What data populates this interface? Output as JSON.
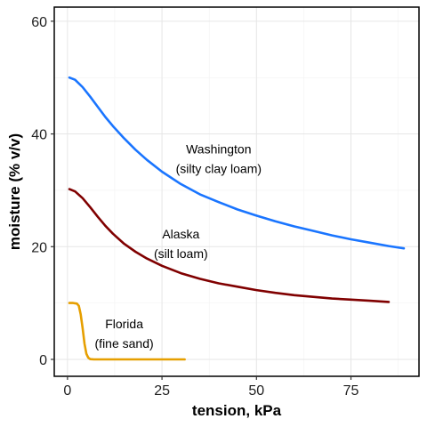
{
  "chart_data": {
    "type": "line",
    "title": "",
    "xlabel": "tension, kPa",
    "ylabel": "moisture (% v/v)",
    "xlim": [
      -3.5,
      93
    ],
    "ylim": [
      -3,
      62.5
    ],
    "xticks": [
      0,
      25,
      50,
      75
    ],
    "yticks": [
      0,
      20,
      40,
      60
    ],
    "grid": true,
    "legend": "none",
    "series": [
      {
        "name": "Washington",
        "color": "#1a75ff",
        "x": [
          0.5,
          2,
          4,
          6,
          8,
          10,
          12,
          15,
          18,
          21,
          25,
          30,
          35,
          40,
          45,
          50,
          55,
          60,
          65,
          70,
          75,
          80,
          85,
          89
        ],
        "values": [
          50,
          49.6,
          48.3,
          46.6,
          44.8,
          43.0,
          41.4,
          39.2,
          37.2,
          35.4,
          33.3,
          31.1,
          29.3,
          27.9,
          26.6,
          25.5,
          24.5,
          23.6,
          22.8,
          22.0,
          21.3,
          20.7,
          20.1,
          19.7
        ]
      },
      {
        "name": "Alaska",
        "color": "#800000",
        "x": [
          0.5,
          2,
          4,
          6,
          8,
          10,
          12,
          15,
          18,
          21,
          25,
          30,
          35,
          40,
          45,
          50,
          55,
          60,
          65,
          70,
          75,
          80,
          85
        ],
        "values": [
          30.2,
          29.8,
          28.6,
          27.0,
          25.3,
          23.7,
          22.3,
          20.5,
          19.1,
          17.9,
          16.6,
          15.3,
          14.3,
          13.5,
          12.9,
          12.3,
          11.8,
          11.4,
          11.1,
          10.8,
          10.6,
          10.4,
          10.2
        ]
      },
      {
        "name": "Florida",
        "color": "#e69f00",
        "x": [
          0.5,
          1.5,
          2.5,
          3.0,
          3.5,
          4.0,
          4.5,
          5.0,
          5.5,
          6.0,
          7,
          10,
          15,
          20,
          25,
          31
        ],
        "values": [
          10,
          10,
          9.9,
          9.5,
          8.0,
          5.5,
          2.8,
          1.0,
          0.3,
          0.05,
          0,
          0,
          0,
          0,
          0,
          0
        ]
      }
    ],
    "annotations": [
      {
        "line1": "Washington",
        "line2": "(silty clay loam)",
        "x": 40,
        "y": 36.5
      },
      {
        "line1": "Alaska",
        "line2": "(silt loam)",
        "x": 30,
        "y": 21.5
      },
      {
        "line1": "Florida",
        "line2": "(fine sand)",
        "x": 15,
        "y": 5.5
      }
    ]
  }
}
